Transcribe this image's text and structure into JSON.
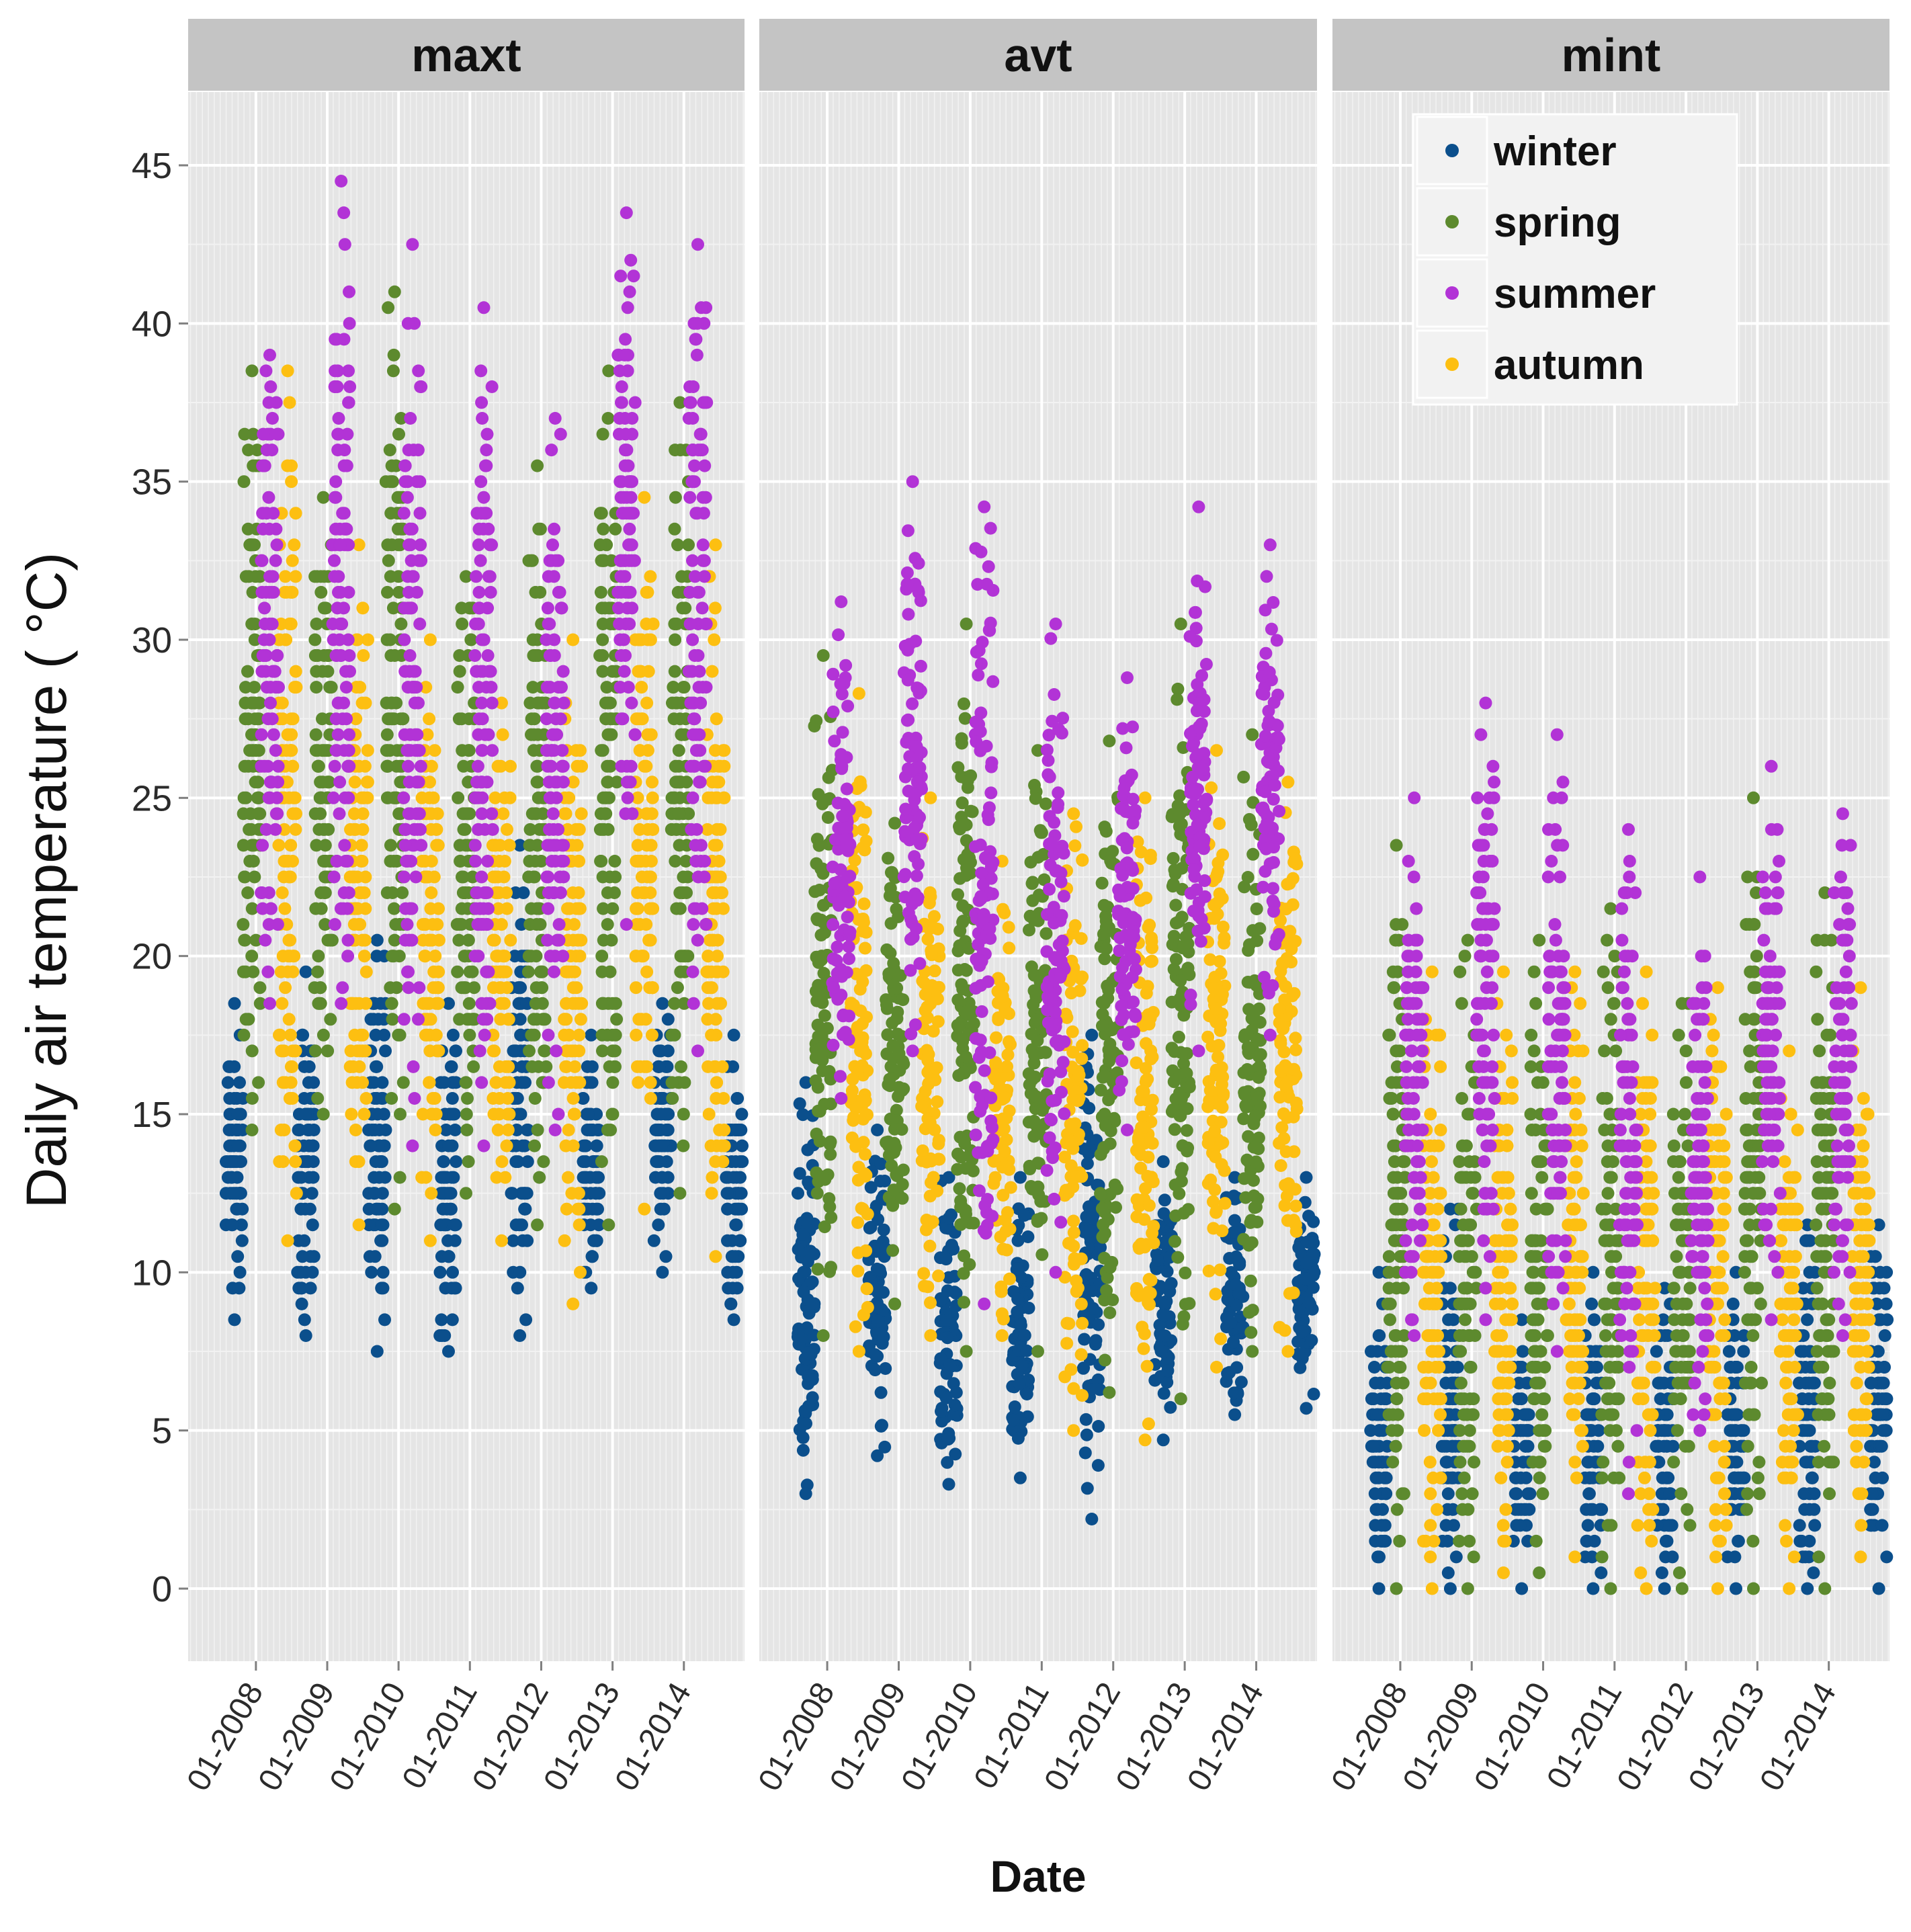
{
  "chart_data": {
    "type": "scatter",
    "facets": [
      "maxt",
      "avt",
      "mint"
    ],
    "xlabel": "Date",
    "ylabel": "Daily air temperature ( °C)",
    "ylim": [
      -4,
      47.5
    ],
    "y_ticks": [
      0,
      5,
      10,
      15,
      20,
      25,
      30,
      35,
      40,
      45
    ],
    "xlim": [
      2007.05,
      2014.85
    ],
    "x_ticks": [
      {
        "value": 2008,
        "label": "01-2008"
      },
      {
        "value": 2009,
        "label": "01-2009"
      },
      {
        "value": 2010,
        "label": "01-2010"
      },
      {
        "value": 2011,
        "label": "01-2011"
      },
      {
        "value": 2012,
        "label": "01-2012"
      },
      {
        "value": 2013,
        "label": "01-2013"
      },
      {
        "value": 2014,
        "label": "01-2014"
      }
    ],
    "legend": {
      "position": "top-right (mint panel)",
      "title": ""
    },
    "series": [
      {
        "name": "winter",
        "color": "#0b4f8c"
      },
      {
        "name": "spring",
        "color": "#5d8a2e"
      },
      {
        "name": "summer",
        "color": "#b233d6"
      },
      {
        "name": "autumn",
        "color": "#fdbf11"
      }
    ],
    "seasonal_ranges": {
      "maxt": [
        {
          "year": 2007,
          "winter": [
            8.5,
            18.5
          ],
          "spring": [
            14.5,
            38.5
          ],
          "summer": [
            18.5,
            39
          ],
          "autumn": [
            11,
            38.5
          ]
        },
        {
          "year": 2008,
          "winter": [
            8,
            19.5
          ],
          "spring": [
            15,
            34.5
          ],
          "summer": [
            18.5,
            44.5
          ],
          "autumn": [
            11.5,
            33
          ]
        },
        {
          "year": 2009,
          "winter": [
            7.5,
            20.5
          ],
          "spring": [
            12,
            41
          ],
          "summer": [
            14,
            42.5
          ],
          "autumn": [
            11,
            30
          ]
        },
        {
          "year": 2010,
          "winter": [
            7.5,
            18.5
          ],
          "spring": [
            12.5,
            32
          ],
          "summer": [
            14,
            40.5
          ],
          "autumn": [
            11,
            28
          ]
        },
        {
          "year": 2011,
          "winter": [
            8,
            23.5
          ],
          "spring": [
            11.5,
            35.5
          ],
          "summer": [
            14.5,
            37
          ],
          "autumn": [
            9,
            30
          ]
        },
        {
          "year": 2012,
          "winter": [
            9.5,
            17.5
          ],
          "spring": [
            11.5,
            38.5
          ],
          "summer": [
            21,
            43.5
          ],
          "autumn": [
            12,
            34.5
          ]
        },
        {
          "year": 2013,
          "winter": [
            10,
            18.5
          ],
          "spring": [
            12.5,
            37.5
          ],
          "summer": [
            17,
            42.5
          ],
          "autumn": [
            10.5,
            33
          ]
        },
        {
          "year": 2014,
          "winter": [
            8.5,
            17.5
          ],
          "spring": [],
          "summer": [],
          "autumn": []
        }
      ],
      "avt": [
        {
          "year": 2007,
          "winter": [
            3,
            16
          ],
          "spring": [
            8,
            29.5
          ],
          "summer": [
            15.5,
            31.2
          ],
          "autumn": [
            7.5,
            28.3
          ]
        },
        {
          "year": 2008,
          "winter": [
            4.2,
            14.5
          ],
          "spring": [
            9,
            24.2
          ],
          "summer": [
            17,
            35
          ],
          "autumn": [
            8,
            25
          ]
        },
        {
          "year": 2009,
          "winter": [
            3.3,
            13
          ],
          "spring": [
            7.5,
            30.5
          ],
          "summer": [
            9,
            34.2
          ],
          "autumn": [
            8,
            23
          ]
        },
        {
          "year": 2010,
          "winter": [
            3.5,
            13
          ],
          "spring": [
            7.5,
            26.5
          ],
          "summer": [
            10,
            30.5
          ],
          "autumn": [
            5,
            24.5
          ]
        },
        {
          "year": 2011,
          "winter": [
            2.2,
            17.5
          ],
          "spring": [
            6.2,
            26.8
          ],
          "summer": [
            14.5,
            28.8
          ],
          "autumn": [
            4.7,
            25
          ]
        },
        {
          "year": 2012,
          "winter": [
            4.7,
            13.5
          ],
          "spring": [
            6,
            30.5
          ],
          "summer": [
            17,
            34.2
          ],
          "autumn": [
            7,
            26.5
          ]
        },
        {
          "year": 2013,
          "winter": [
            5.5,
            13
          ],
          "spring": [
            7.5,
            27
          ],
          "summer": [
            17.5,
            33
          ],
          "autumn": [
            7.5,
            25.5
          ]
        },
        {
          "year": 2014,
          "winter": [
            5.7,
            13
          ],
          "spring": [],
          "summer": [],
          "autumn": []
        }
      ],
      "mint": [
        {
          "year": 2007,
          "winter": [
            0,
            10
          ],
          "spring": [
            0,
            23.5
          ],
          "summer": [
            8,
            25
          ],
          "autumn": [
            0,
            19.5
          ]
        },
        {
          "year": 2008,
          "winter": [
            0,
            12
          ],
          "spring": [
            0,
            20.5
          ],
          "summer": [
            8.5,
            28
          ],
          "autumn": [
            0.5,
            19.5
          ]
        },
        {
          "year": 2009,
          "winter": [
            0,
            8.5
          ],
          "spring": [
            0.5,
            20.5
          ],
          "summer": [
            7.5,
            27
          ],
          "autumn": [
            1,
            19.5
          ]
        },
        {
          "year": 2010,
          "winter": [
            0,
            10
          ],
          "spring": [
            0,
            21.5
          ],
          "summer": [
            3,
            24
          ],
          "autumn": [
            0,
            19.5
          ]
        },
        {
          "year": 2011,
          "winter": [
            0,
            9.5
          ],
          "spring": [
            0,
            18.5
          ],
          "summer": [
            5,
            22.5
          ],
          "autumn": [
            0,
            19
          ]
        },
        {
          "year": 2012,
          "winter": [
            0,
            10
          ],
          "spring": [
            0,
            25
          ],
          "summer": [
            8.5,
            26
          ],
          "autumn": [
            0,
            17
          ]
        },
        {
          "year": 2013,
          "winter": [
            0,
            11.5
          ],
          "spring": [
            0,
            22
          ],
          "summer": [
            8,
            24.5
          ],
          "autumn": [
            1,
            19
          ]
        },
        {
          "year": 2014,
          "winter": [
            0,
            11.5
          ],
          "spring": [],
          "summer": [],
          "autumn": []
        }
      ]
    }
  }
}
